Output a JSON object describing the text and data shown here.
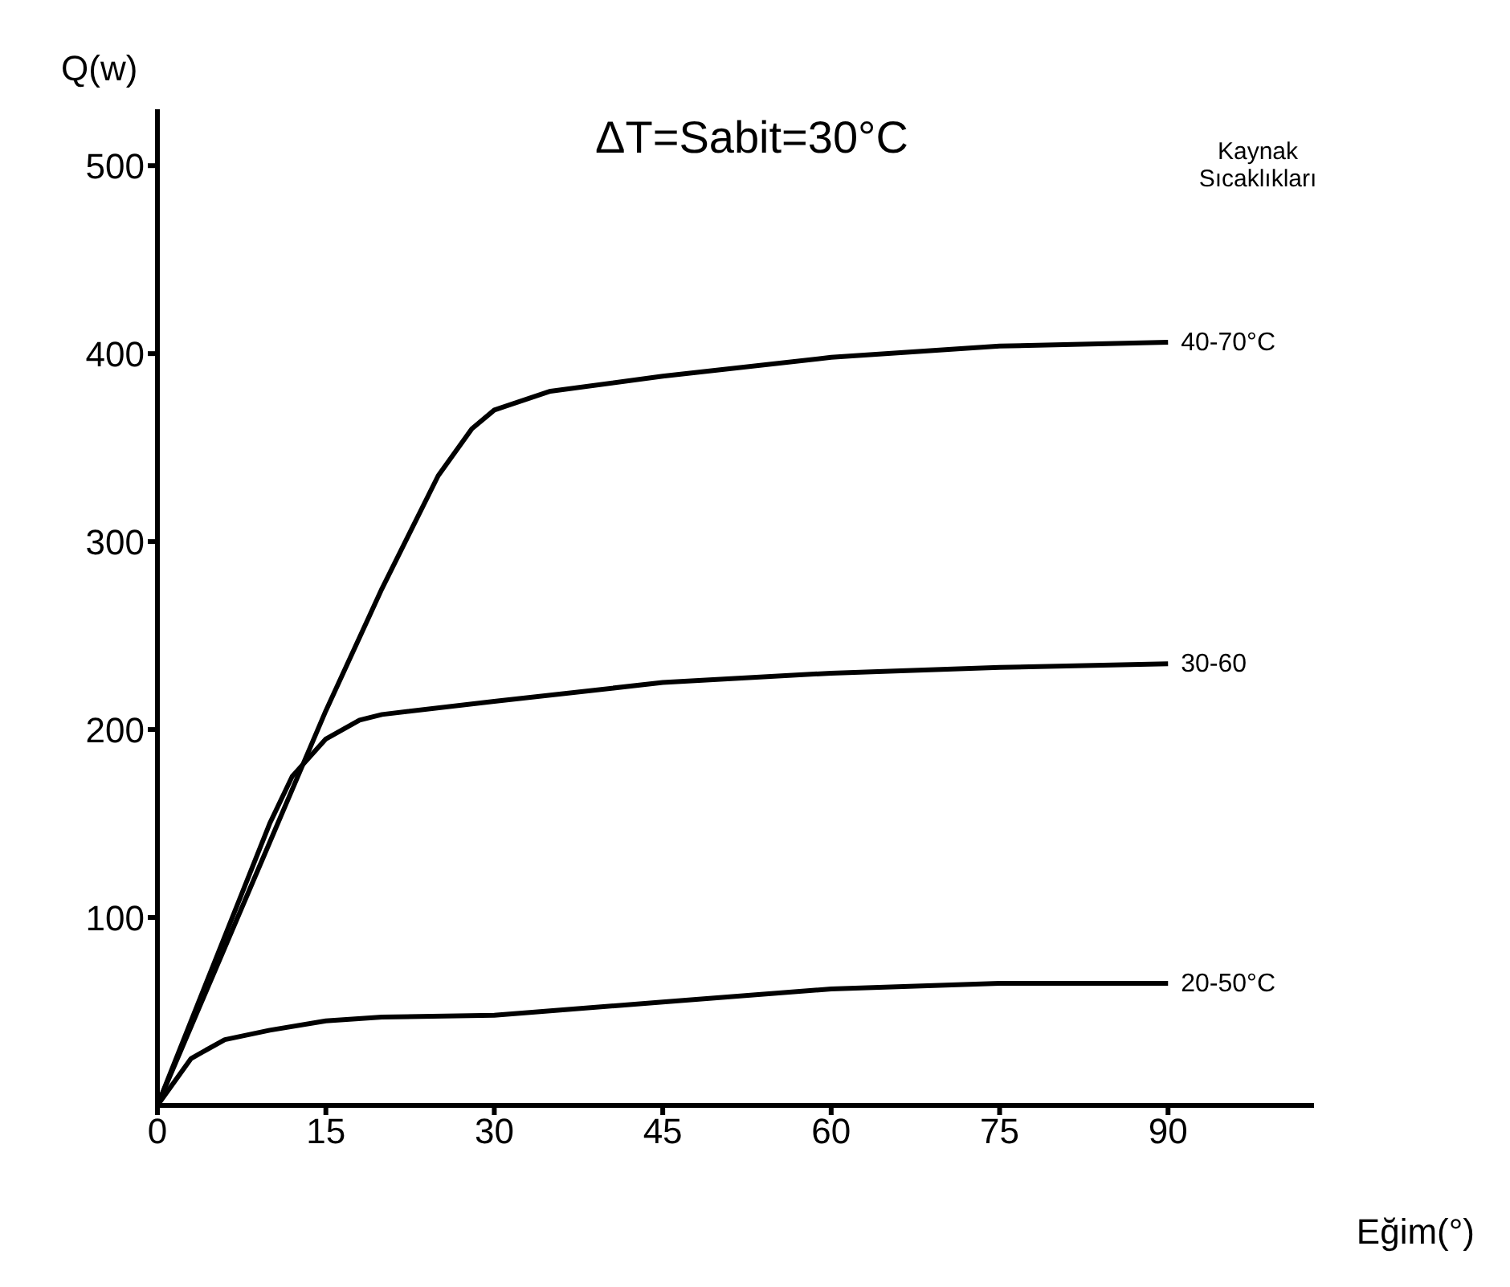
{
  "chart_data": {
    "type": "line",
    "title": "ΔT=Sabit=30°C",
    "legend_title": "Kaynak Sıcaklıkları",
    "xlabel": "Eğim(°)",
    "ylabel": "Q(w)",
    "xlim": [
      0,
      103
    ],
    "xticks": [
      0,
      15,
      30,
      45,
      60,
      75,
      90
    ],
    "ylim": [
      0,
      530
    ],
    "yticks": [
      100,
      200,
      300,
      400,
      500
    ],
    "grid": false,
    "legend": false,
    "marker": "none",
    "line_style": "solid",
    "series": [
      {
        "name": "40-70°C",
        "color": "#000000",
        "x": [
          0,
          5,
          10,
          15,
          20,
          25,
          28,
          30,
          35,
          45,
          60,
          75,
          90
        ],
        "values": [
          0,
          70,
          140,
          210,
          275,
          335,
          360,
          370,
          380,
          388,
          398,
          404,
          406
        ]
      },
      {
        "name": "30-60",
        "color": "#000000",
        "x": [
          0,
          5,
          10,
          12,
          15,
          18,
          20,
          30,
          45,
          60,
          75,
          90
        ],
        "values": [
          0,
          75,
          150,
          175,
          195,
          205,
          208,
          215,
          225,
          230,
          233,
          235
        ]
      },
      {
        "name": "20-50°C",
        "color": "#000000",
        "x": [
          0,
          3,
          6,
          10,
          15,
          20,
          30,
          45,
          60,
          75,
          90
        ],
        "values": [
          0,
          25,
          35,
          40,
          45,
          47,
          48,
          55,
          62,
          65,
          65
        ]
      }
    ]
  }
}
